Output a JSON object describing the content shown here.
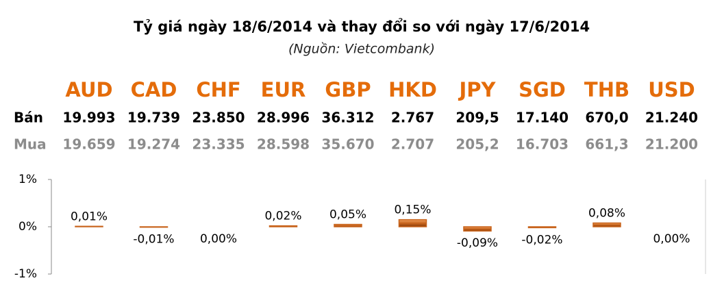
{
  "chart_data": {
    "type": "bar",
    "title": "Tỷ giá ngày 18/6/2014 và thay đổi so với ngày 17/6/2014",
    "subtitle": "(Nguồn: Vietcombank)",
    "categories": [
      "AUD",
      "CAD",
      "CHF",
      "EUR",
      "GBP",
      "HKD",
      "JPY",
      "SGD",
      "THB",
      "USD"
    ],
    "values": [
      0.01,
      -0.01,
      0.0,
      0.02,
      0.05,
      0.15,
      -0.09,
      -0.02,
      0.08,
      0.0
    ],
    "value_labels": [
      "0,01%",
      "-0,01%",
      "0,00%",
      "0,02%",
      "0,05%",
      "0,15%",
      "-0,09%",
      "-0,02%",
      "0,08%",
      "0,00%"
    ],
    "color": "#c8641c",
    "ylim": [
      -1,
      1
    ],
    "yticks": [
      {
        "value": 1,
        "label": "1%"
      },
      {
        "value": 0,
        "label": "0%"
      },
      {
        "value": -1,
        "label": "-1%"
      }
    ]
  },
  "table": {
    "rows": [
      {
        "label": "Bán",
        "values": [
          "19.993",
          "19.739",
          "23.850",
          "28.996",
          "36.312",
          "2.767",
          "209,5",
          "17.140",
          "670,0",
          "21.240"
        ]
      },
      {
        "label": "Mua",
        "values": [
          "19.659",
          "19.274",
          "23.335",
          "28.598",
          "35.670",
          "2.707",
          "205,2",
          "16.703",
          "661,3",
          "21.200"
        ]
      }
    ]
  }
}
